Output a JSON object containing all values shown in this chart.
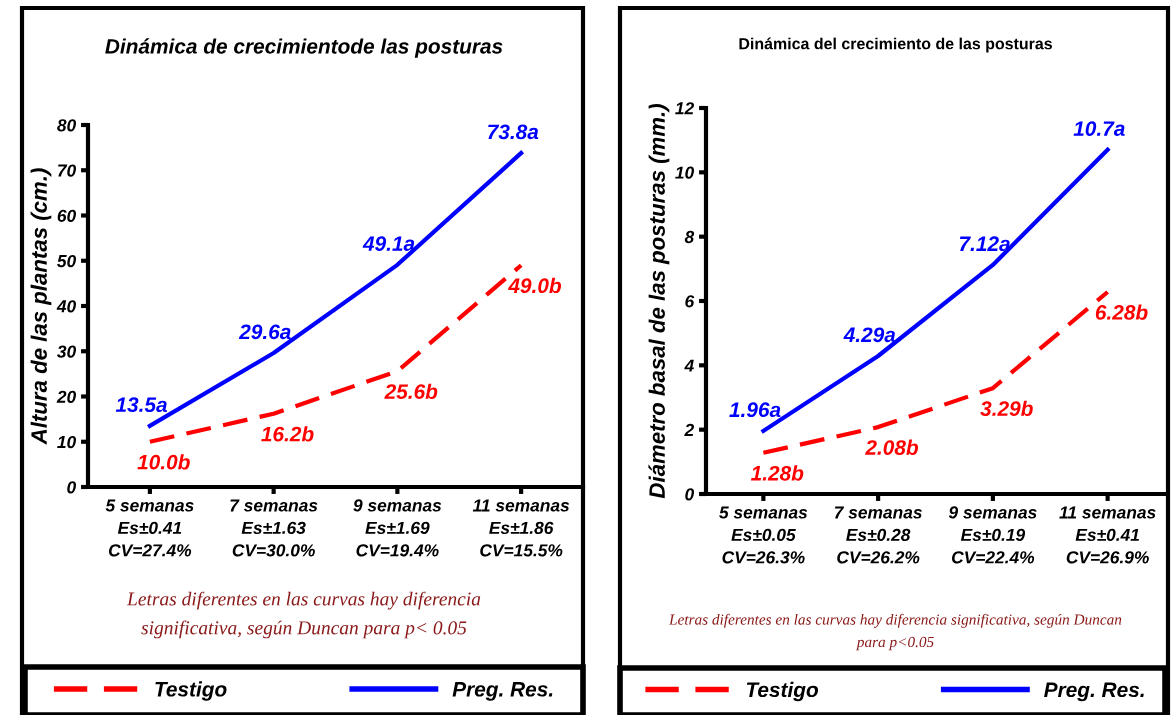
{
  "chart_data": [
    {
      "type": "line",
      "title": "Dinámica de crecimientode las posturas",
      "ylabel": "Altura de las plantas (cm.)",
      "categories": [
        "5 semanas\nEs±0.41\nCV=27.4%",
        "7 semanas\nEs±1.63\nCV=30.0%",
        "9 semanas\nEs±1.69\nCV=19.4%",
        "11 semanas\nEs±1.86\nCV=15.5%"
      ],
      "series": [
        {
          "name": "Testigo",
          "color": "#ff0000",
          "line_style": "dashed",
          "values": [
            10.0,
            16.2,
            25.6,
            49.0
          ],
          "value_labels": [
            "10.0b",
            "16.2b",
            "25.6b",
            "49.0b"
          ]
        },
        {
          "name": "Preg. Res.",
          "color": "#0000ff",
          "line_style": "solid",
          "values": [
            13.5,
            29.6,
            49.1,
            73.8
          ],
          "value_labels": [
            "13.5a",
            "29.6a",
            "49.1a",
            "73.8a"
          ]
        }
      ],
      "ylim": [
        0,
        80
      ],
      "yticks": [
        0,
        10,
        20,
        30,
        40,
        50,
        60,
        70,
        80
      ],
      "grid": false,
      "legend": "bottom",
      "annotations": [
        "Letras diferentes en las curvas hay diferencia significativa, según Duncan para p< 0.05"
      ]
    },
    {
      "type": "line",
      "title": "Dinámica del crecimiento de las posturas",
      "ylabel": "Diámetro basal de las posturas (mm.)",
      "categories": [
        "5 semanas\nEs±0.05\nCV=26.3%",
        "7 semanas\nEs±0.28\nCV=26.2%",
        "9 semanas\nEs±0.19\nCV=22.4%",
        "11 semanas\nEs±0.41\nCV=26.9%"
      ],
      "series": [
        {
          "name": "Testigo",
          "color": "#ff0000",
          "line_style": "dashed",
          "values": [
            1.28,
            2.08,
            3.29,
            6.28
          ],
          "value_labels": [
            "1.28b",
            "2.08b",
            "3.29b",
            "6.28b"
          ]
        },
        {
          "name": "Preg. Res.",
          "color": "#0000ff",
          "line_style": "solid",
          "values": [
            1.96,
            4.29,
            7.12,
            10.7
          ],
          "value_labels": [
            "1.96a",
            "4.29a",
            "7.12a",
            "10.7a"
          ]
        }
      ],
      "ylim": [
        0,
        12
      ],
      "yticks": [
        0,
        2,
        4,
        6,
        8,
        10,
        12
      ],
      "grid": false,
      "legend": "bottom",
      "annotations": [
        "Letras diferentes en las curvas hay diferencia significativa, según Duncan para p<0.05"
      ]
    }
  ]
}
